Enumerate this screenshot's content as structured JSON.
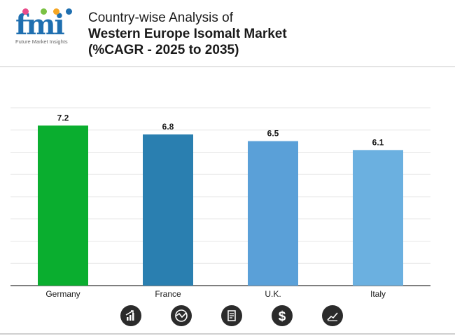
{
  "brand": {
    "logo_text": "fmi",
    "tagline": "Future Market Insights",
    "dot_colors": [
      "#e94b8a",
      "#7ac143",
      "#f5a623",
      "#1f6fb0"
    ]
  },
  "header": {
    "title_line1": "Country-wise Analysis of",
    "title_line2": "Western Europe Isomalt Market",
    "title_line3": "(%CAGR - 2025 to 2035)"
  },
  "chart_data": {
    "type": "bar",
    "categories": [
      "Germany",
      "France",
      "U.K.",
      "Italy"
    ],
    "values": [
      7.2,
      6.8,
      6.5,
      6.1
    ],
    "data_labels": [
      "7.2",
      "6.8",
      "6.5",
      "6.1"
    ],
    "colors": [
      "#0aae2f",
      "#2a7fb0",
      "#5aa0d8",
      "#6bb0e0"
    ],
    "title": "",
    "xlabel": "",
    "ylabel": "",
    "ylim": [
      0,
      8
    ],
    "grid": true
  },
  "footer_icons": [
    "bar-growth-icon",
    "chart-circle-icon",
    "report-icon",
    "dollar-icon",
    "trend-line-icon"
  ]
}
